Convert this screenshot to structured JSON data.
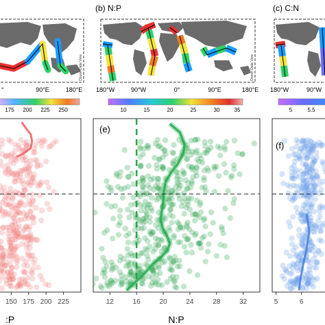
{
  "panels_top": [
    {
      "id": "a",
      "title": "",
      "x_ticks": [
        "°",
        "90°E",
        "180°E"
      ],
      "colorbar_ticks": [
        "175",
        "200",
        "225",
        "250"
      ],
      "credit": "Ocean Data View"
    },
    {
      "id": "b",
      "title": "(b) N:P",
      "x_ticks": [
        "180°W",
        "90°W",
        "0°",
        "90°E",
        "180°E"
      ],
      "colorbar_ticks": [
        "10",
        "15",
        "20",
        "25",
        "30",
        "35"
      ],
      "credit": "Ocean Data View"
    },
    {
      "id": "c",
      "title": "(c) C:N",
      "x_ticks": [
        "180°W",
        "90°W"
      ],
      "colorbar_ticks": [
        "5",
        "5.5"
      ],
      "credit": ""
    }
  ],
  "chart_data": [
    {
      "type": "scatter",
      "panel": "d",
      "title": "",
      "xlabel": ":P",
      "x_ticks": [
        "150",
        "175",
        "200",
        "225"
      ],
      "xlim": [
        132,
        250
      ],
      "dashed_hline": true,
      "color": "#f08080",
      "trend": [
        [
          165,
          0.02
        ],
        [
          172,
          0.06
        ],
        [
          178,
          0.09
        ],
        [
          180,
          0.13
        ],
        [
          178,
          0.17
        ],
        [
          168,
          0.2
        ],
        [
          158,
          0.22
        ]
      ]
    },
    {
      "type": "scatter",
      "panel": "e",
      "title": "",
      "label": "(e)",
      "xlabel": "N:P",
      "x_ticks": [
        "12",
        "16",
        "20",
        "24",
        "28",
        "32"
      ],
      "xlim": [
        9.5,
        34.5
      ],
      "reference_vline": 16,
      "dashed_hline": true,
      "color": "#2ca34a",
      "trend": [
        [
          21.0,
          0.03
        ],
        [
          22.5,
          0.08
        ],
        [
          23.2,
          0.15
        ],
        [
          23.0,
          0.2
        ],
        [
          22.2,
          0.26
        ],
        [
          21.2,
          0.31
        ],
        [
          20.4,
          0.36
        ],
        [
          20.1,
          0.42
        ],
        [
          20.0,
          0.48
        ],
        [
          19.8,
          0.53
        ],
        [
          19.6,
          0.58
        ],
        [
          19.9,
          0.63
        ],
        [
          20.6,
          0.68
        ],
        [
          21.0,
          0.72
        ],
        [
          20.6,
          0.76
        ],
        [
          19.6,
          0.8
        ],
        [
          18.4,
          0.84
        ],
        [
          17.0,
          0.9
        ],
        [
          15.6,
          0.95
        ],
        [
          14.5,
          0.99
        ]
      ]
    },
    {
      "type": "scatter",
      "panel": "f",
      "title": "",
      "label": "(f)",
      "xlabel": "",
      "x_ticks": [
        "5",
        "6"
      ],
      "xlim": [
        4.85,
        7.0
      ],
      "dashed_hline": true,
      "color": "#6fa0e8",
      "trend": [
        [
          6.2,
          0.55
        ],
        [
          6.3,
          0.65
        ],
        [
          6.2,
          0.75
        ],
        [
          6.05,
          0.85
        ],
        [
          5.95,
          0.93
        ],
        [
          5.9,
          0.99
        ]
      ]
    }
  ]
}
